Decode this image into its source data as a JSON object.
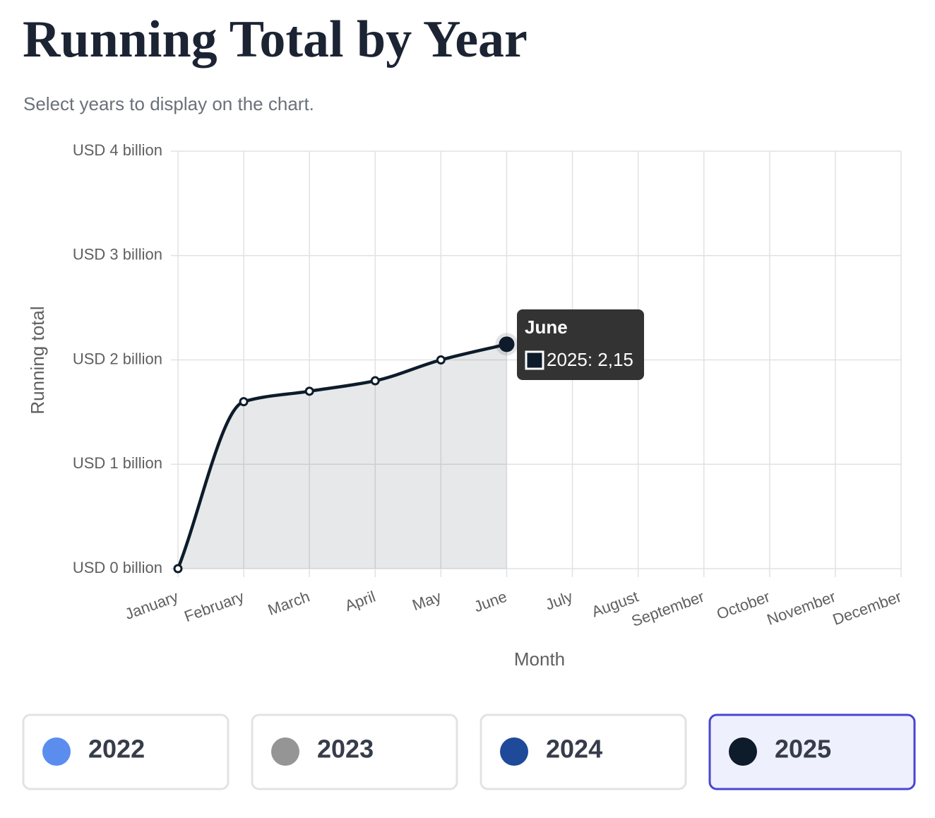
{
  "chart_data": {
    "type": "line",
    "title": "Running Total by Year",
    "subtitle": "Select years to display on the chart.",
    "x_label": "Month",
    "y_label": "Running total",
    "categories": [
      "January",
      "February",
      "March",
      "April",
      "May",
      "June",
      "July",
      "August",
      "September",
      "October",
      "November",
      "December"
    ],
    "ylim": [
      0,
      4
    ],
    "yticks": [
      {
        "value": 0,
        "label": "USD 0 billion"
      },
      {
        "value": 1,
        "label": "USD 1 billion"
      },
      {
        "value": 2,
        "label": "USD 2 billion"
      },
      {
        "value": 3,
        "label": "USD 3 billion"
      },
      {
        "value": 4,
        "label": "USD 4 billion"
      }
    ],
    "grid": true,
    "series": [
      {
        "name": "2022",
        "color": "#5b8def",
        "selected": false,
        "values": [
          null,
          null,
          null,
          null,
          null,
          null,
          null,
          null,
          null,
          null,
          null,
          null
        ]
      },
      {
        "name": "2023",
        "color": "#959595",
        "selected": false,
        "values": [
          null,
          null,
          null,
          null,
          null,
          null,
          null,
          null,
          null,
          null,
          null,
          null
        ]
      },
      {
        "name": "2024",
        "color": "#1f4a99",
        "selected": false,
        "values": [
          null,
          null,
          null,
          null,
          null,
          null,
          null,
          null,
          null,
          null,
          null,
          null
        ]
      },
      {
        "name": "2025",
        "color": "#0d1b2a",
        "selected": true,
        "values": [
          0,
          1.6,
          1.7,
          1.8,
          2.0,
          2.15,
          null,
          null,
          null,
          null,
          null,
          null
        ]
      }
    ],
    "tooltip": {
      "title": "June",
      "text": "2025: 2,15"
    }
  }
}
